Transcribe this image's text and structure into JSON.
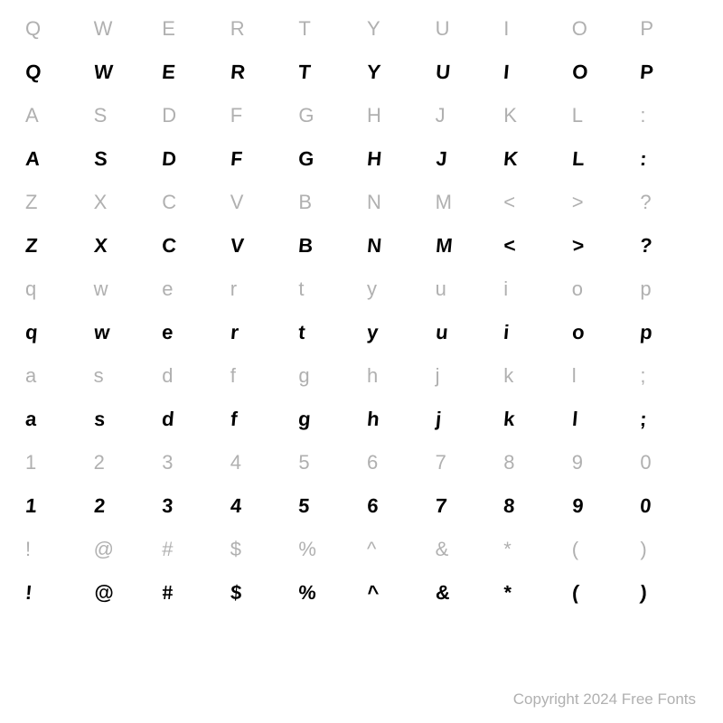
{
  "grid": {
    "columns": 10,
    "rows": [
      {
        "type": "ref",
        "chars": [
          "Q",
          "W",
          "E",
          "R",
          "T",
          "Y",
          "U",
          "I",
          "O",
          "P"
        ]
      },
      {
        "type": "sample",
        "chars": [
          "Q",
          "W",
          "E",
          "R",
          "T",
          "Y",
          "U",
          "I",
          "O",
          "P"
        ]
      },
      {
        "type": "ref",
        "chars": [
          "A",
          "S",
          "D",
          "F",
          "G",
          "H",
          "J",
          "K",
          "L",
          ":"
        ]
      },
      {
        "type": "sample",
        "chars": [
          "A",
          "S",
          "D",
          "F",
          "G",
          "H",
          "J",
          "K",
          "L",
          ":"
        ]
      },
      {
        "type": "ref",
        "chars": [
          "Z",
          "X",
          "C",
          "V",
          "B",
          "N",
          "M",
          "<",
          ">",
          "?"
        ]
      },
      {
        "type": "sample",
        "chars": [
          "Z",
          "X",
          "C",
          "V",
          "B",
          "N",
          "M",
          "<",
          ">",
          "?"
        ]
      },
      {
        "type": "ref",
        "chars": [
          "q",
          "w",
          "e",
          "r",
          "t",
          "y",
          "u",
          "i",
          "o",
          "p"
        ]
      },
      {
        "type": "sample",
        "chars": [
          "q",
          "w",
          "e",
          "r",
          "t",
          "y",
          "u",
          "i",
          "o",
          "p"
        ]
      },
      {
        "type": "ref",
        "chars": [
          "a",
          "s",
          "d",
          "f",
          "g",
          "h",
          "j",
          "k",
          "l",
          ";"
        ]
      },
      {
        "type": "sample",
        "chars": [
          "a",
          "s",
          "d",
          "f",
          "g",
          "h",
          "j",
          "k",
          "l",
          ";"
        ]
      },
      {
        "type": "ref",
        "chars": [
          "1",
          "2",
          "3",
          "4",
          "5",
          "6",
          "7",
          "8",
          "9",
          "0"
        ]
      },
      {
        "type": "sample",
        "chars": [
          "1",
          "2",
          "3",
          "4",
          "5",
          "6",
          "7",
          "8",
          "9",
          "0"
        ]
      },
      {
        "type": "ref",
        "chars": [
          "!",
          "@",
          "#",
          "$",
          "%",
          "^",
          "&",
          "*",
          "(",
          ")"
        ]
      },
      {
        "type": "sample",
        "chars": [
          "!",
          "@",
          "#",
          "$",
          "%",
          "^",
          "&",
          "*",
          "(",
          ")"
        ]
      }
    ],
    "ref_color": "#b0b0b0",
    "sample_color": "#000000",
    "ref_font_size": 22,
    "sample_font_size": 22,
    "background_color": "#ffffff"
  },
  "copyright": "Copyright 2024 Free Fonts"
}
